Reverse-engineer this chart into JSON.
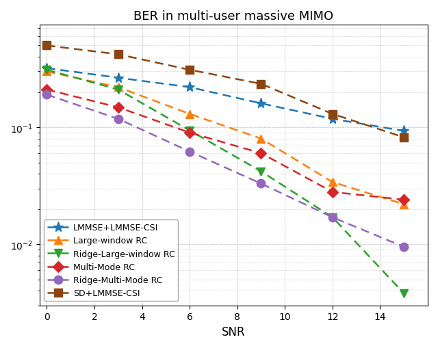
{
  "title": "BER in multi-user massive MIMO",
  "xlabel": "SNR",
  "snr": [
    0,
    3,
    6,
    9,
    12,
    15
  ],
  "series": [
    {
      "label": "LMMSE+LMMSE-CSI",
      "color": "#1f77b4",
      "marker": "*",
      "markersize": 11,
      "values": [
        0.32,
        0.265,
        0.22,
        0.16,
        0.118,
        0.093
      ]
    },
    {
      "label": "Large-window RC",
      "color": "#ff7f0e",
      "marker": "^",
      "markersize": 9,
      "values": [
        0.3,
        0.22,
        0.13,
        0.08,
        0.034,
        0.022
      ]
    },
    {
      "label": "Ridge-Large-window RC",
      "color": "#2ca02c",
      "marker": "v",
      "markersize": 9,
      "values": [
        0.31,
        0.21,
        0.094,
        0.042,
        0.017,
        0.0038
      ]
    },
    {
      "label": "Multi-Mode RC",
      "color": "#d62728",
      "marker": "D",
      "markersize": 8,
      "values": [
        0.21,
        0.148,
        0.09,
        0.06,
        0.028,
        0.024
      ]
    },
    {
      "label": "Ridge-Multi-Mode RC",
      "color": "#9467bd",
      "marker": "o",
      "markersize": 9,
      "values": [
        0.19,
        0.118,
        0.062,
        0.033,
        0.017,
        0.0095
      ]
    },
    {
      "label": "SD+LMMSE-CSI",
      "color": "#8B4513",
      "marker": "s",
      "markersize": 8,
      "values": [
        0.5,
        0.42,
        0.31,
        0.235,
        0.13,
        0.082
      ]
    }
  ],
  "ylim": [
    0.003,
    0.75
  ],
  "xlim": [
    -0.3,
    16.0
  ],
  "xticks": [
    0,
    2,
    4,
    6,
    8,
    10,
    12,
    14
  ],
  "yticks": [
    0.01,
    0.1
  ],
  "figsize": [
    6.4,
    5.1
  ],
  "dpi": 100,
  "legend_loc": "lower left",
  "legend_fontsize": 9
}
